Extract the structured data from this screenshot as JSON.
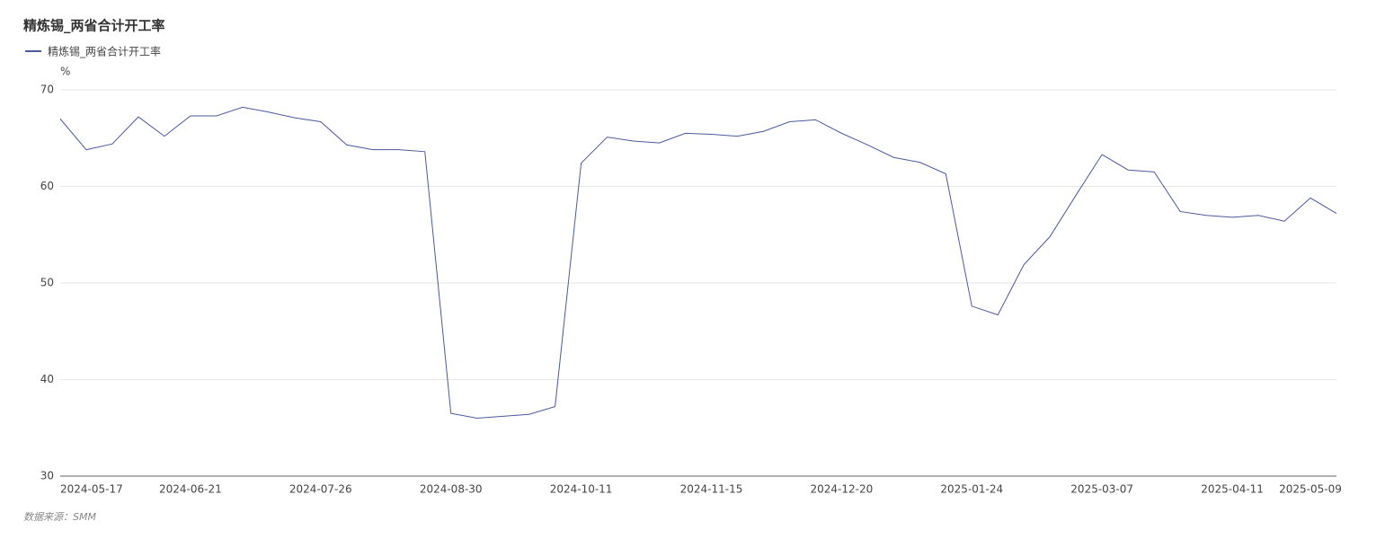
{
  "chart_data": {
    "type": "line",
    "title": "精炼锡_两省合计开工率",
    "y_unit": "%",
    "source": "数据来源：SMM",
    "categories": [
      "2024-05-17",
      null,
      null,
      null,
      null,
      "2024-06-21",
      null,
      null,
      null,
      null,
      "2024-07-26",
      null,
      null,
      null,
      null,
      "2024-08-30",
      null,
      null,
      null,
      null,
      "2024-10-11",
      null,
      null,
      null,
      null,
      "2024-11-15",
      null,
      null,
      null,
      null,
      "2024-12-20",
      null,
      null,
      null,
      null,
      "2025-01-24",
      null,
      null,
      null,
      null,
      "2025-03-07",
      null,
      null,
      null,
      null,
      "2025-04-11",
      null,
      null,
      "2025-05-09",
      null
    ],
    "series": [
      {
        "name": "精炼锡_两省合计开工率",
        "color": "#4a5a9c",
        "values": [
          67.0,
          63.8,
          64.4,
          67.2,
          65.2,
          67.3,
          67.3,
          68.2,
          67.7,
          67.1,
          66.7,
          64.3,
          63.8,
          63.8,
          63.6,
          36.5,
          36.0,
          36.2,
          36.4,
          37.2,
          62.4,
          65.1,
          64.7,
          64.5,
          65.5,
          65.4,
          65.2,
          65.7,
          66.7,
          66.9,
          65.5,
          64.3,
          63.0,
          62.5,
          61.3,
          47.6,
          46.7,
          51.9,
          54.8,
          59.1,
          63.3,
          61.7,
          61.5,
          57.4,
          57.0,
          56.8,
          57.0,
          56.4,
          58.8,
          57.2
        ]
      }
    ],
    "ylim": [
      30,
      70
    ],
    "yticks": [
      30,
      40,
      50,
      60,
      70
    ],
    "grid": true
  }
}
